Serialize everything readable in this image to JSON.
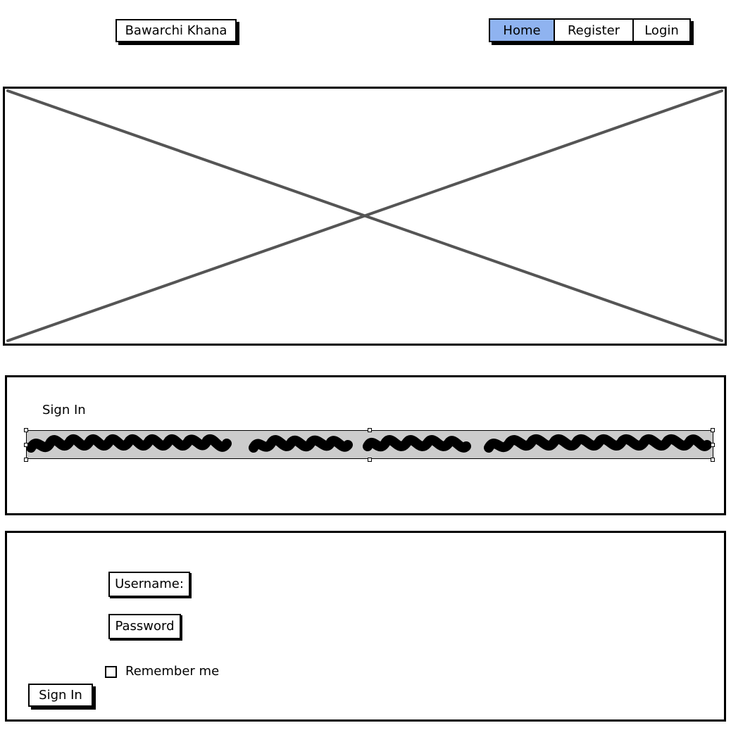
{
  "header": {
    "brand_label": "Bawarchi Khana",
    "nav": {
      "home": "Home",
      "register": "Register",
      "login": "Login"
    }
  },
  "hero": {
    "icon": "image-placeholder-icon"
  },
  "signin_section": {
    "title": "Sign In",
    "redacted_text_icon": "scribble-text-placeholder"
  },
  "login_form": {
    "username_label": "Username:",
    "password_label": "Password",
    "remember_label": "Remember me",
    "submit_label": "Sign In"
  },
  "colors": {
    "active_nav": "#8fb3f0",
    "placeholder_line": "#555555",
    "scribble_bg": "#cccccc"
  }
}
